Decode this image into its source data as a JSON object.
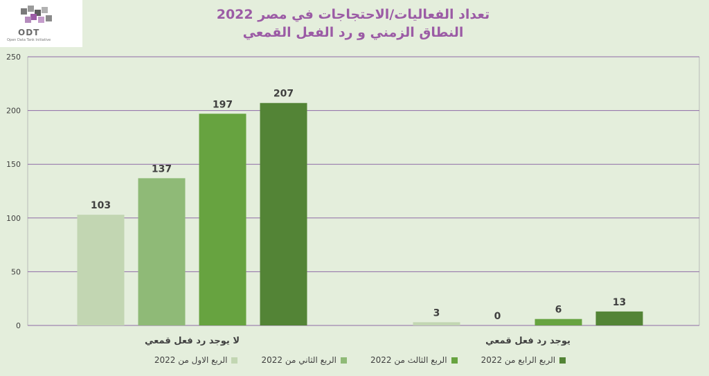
{
  "logo": {
    "text": "ODT",
    "subtext": "Open Data Tank Initiative"
  },
  "title": {
    "line1": "تعداد الفعاليات/الاحتجاجات في مصر 2022",
    "line2": "النطاق الزمني و رد الفعل القمعي"
  },
  "chart_data": {
    "type": "bar",
    "categories": [
      "لا يوجد رد فعل قمعي",
      "يوجد رد فعل قمعي"
    ],
    "series": [
      {
        "name": "الربع الاول من 2022",
        "values": [
          103,
          3
        ],
        "color": "#c2d6b2"
      },
      {
        "name": "الربع الثاني من 2022",
        "values": [
          137,
          0
        ],
        "color": "#8fba77"
      },
      {
        "name": "الربع الثالث من 2022",
        "values": [
          197,
          6
        ],
        "color": "#67a340"
      },
      {
        "name": "الربع الرابع من 2022",
        "values": [
          207,
          13
        ],
        "color": "#538436"
      }
    ],
    "ylim": [
      0,
      250
    ],
    "yticks": [
      0,
      50,
      100,
      150,
      200,
      250
    ],
    "grid": true,
    "gridline_color": "#8e6aa6",
    "legend_position": "bottom"
  }
}
